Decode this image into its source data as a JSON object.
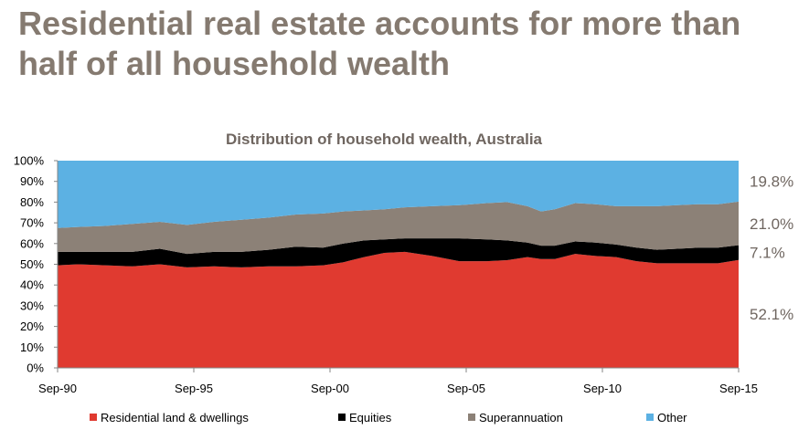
{
  "headline": "Residential real estate accounts for more than half of all household wealth",
  "chart_data": {
    "type": "area",
    "stacked": true,
    "title": "Distribution of household wealth, Australia",
    "xlabel": "",
    "ylabel": "",
    "ylim": [
      0,
      100
    ],
    "yticks": [
      "0%",
      "10%",
      "20%",
      "30%",
      "40%",
      "50%",
      "60%",
      "70%",
      "80%",
      "90%",
      "100%"
    ],
    "xticks": [
      "Sep-90",
      "Sep-95",
      "Sep-00",
      "Sep-05",
      "Sep-10",
      "Sep-15"
    ],
    "x": [
      1990.75,
      1991.5,
      1992.5,
      1993.5,
      1994.5,
      1995.5,
      1996.5,
      1997.5,
      1998.5,
      1999.5,
      2000.5,
      2001.25,
      2002.0,
      2002.75,
      2003.5,
      2004.5,
      2005.5,
      2006.5,
      2007.25,
      2008.0,
      2008.5,
      2009.0,
      2009.75,
      2010.5,
      2011.25,
      2012.0,
      2012.75,
      2013.5,
      2014.25,
      2015.0,
      2015.75
    ],
    "legend_position": "bottom",
    "series": [
      {
        "name": "Residential land & dwellings",
        "color": "#e03a30",
        "values": [
          49.5,
          50.0,
          49.5,
          49.0,
          50.0,
          48.5,
          49.0,
          48.5,
          49.0,
          49.0,
          49.5,
          51.0,
          53.5,
          55.5,
          56.0,
          54.0,
          51.5,
          51.5,
          52.0,
          53.5,
          52.5,
          52.5,
          55.0,
          54.0,
          53.5,
          51.5,
          50.5,
          50.5,
          50.5,
          50.5,
          52.1
        ]
      },
      {
        "name": "Equities",
        "color": "#000000",
        "values": [
          6.5,
          6.0,
          6.5,
          7.0,
          7.5,
          6.5,
          7.0,
          7.5,
          8.0,
          9.5,
          8.5,
          9.0,
          8.0,
          6.5,
          6.5,
          8.5,
          11.0,
          10.5,
          9.5,
          7.0,
          6.5,
          6.5,
          6.0,
          6.5,
          6.0,
          6.5,
          6.5,
          7.0,
          7.5,
          7.5,
          7.1
        ]
      },
      {
        "name": "Superannuation",
        "color": "#8c8177",
        "values": [
          11.5,
          12.0,
          12.5,
          13.5,
          13.0,
          14.0,
          14.5,
          15.5,
          15.5,
          15.5,
          16.5,
          15.5,
          14.5,
          14.5,
          15.0,
          15.5,
          16.0,
          17.5,
          18.5,
          17.5,
          16.5,
          17.5,
          18.5,
          18.5,
          18.5,
          20.0,
          21.0,
          21.0,
          21.0,
          21.0,
          21.0
        ]
      },
      {
        "name": "Other",
        "color": "#5cb1e3",
        "values": [
          32.5,
          32.0,
          31.5,
          30.5,
          29.5,
          31.0,
          29.5,
          28.5,
          27.5,
          26.0,
          25.5,
          24.5,
          24.0,
          23.5,
          22.5,
          22.0,
          21.5,
          20.5,
          20.0,
          22.0,
          24.5,
          23.5,
          20.5,
          21.0,
          22.0,
          22.0,
          22.0,
          21.5,
          21.0,
          21.0,
          19.8
        ]
      }
    ],
    "end_labels": [
      "19.8%",
      "21.0%",
      "7.1%",
      "52.1%"
    ]
  }
}
